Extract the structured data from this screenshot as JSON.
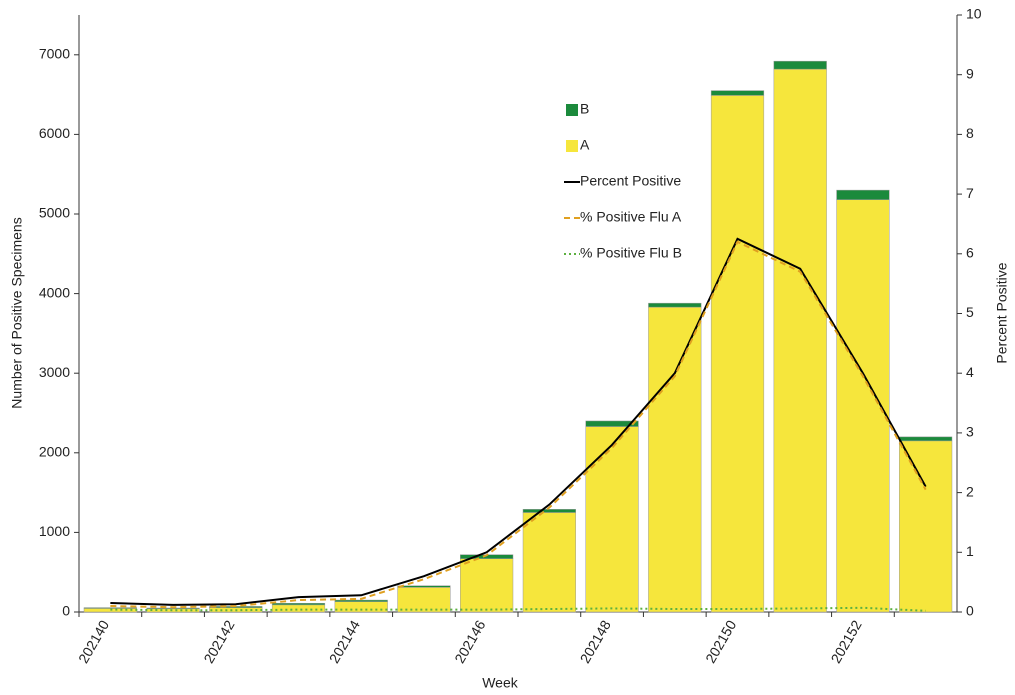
{
  "chart_data": {
    "type": "bar",
    "x_label": "Week",
    "y_label": "Number of Positive Specimens",
    "y2_label": "Percent Positive",
    "categories": [
      "202140",
      null,
      "202142",
      null,
      "202144",
      null,
      "202146",
      null,
      "202148",
      null,
      "202150",
      null,
      "202152",
      null
    ],
    "series": [
      {
        "name": "B",
        "kind": "bar",
        "color": "#1b8a3c",
        "values": [
          10,
          10,
          15,
          20,
          20,
          20,
          50,
          40,
          70,
          50,
          60,
          100,
          120,
          50
        ]
      },
      {
        "name": "A",
        "kind": "bar",
        "color": "#f6e63c",
        "values": [
          45,
          40,
          55,
          90,
          130,
          310,
          670,
          1250,
          2330,
          3830,
          6490,
          6820,
          5180,
          2150
        ]
      },
      {
        "name": "Percent Positive",
        "kind": "line",
        "axis": "y2",
        "color": "#000000",
        "dash": "none",
        "values": [
          0.15,
          0.12,
          0.13,
          0.25,
          0.28,
          0.6,
          1.0,
          1.8,
          2.8,
          4.0,
          6.25,
          5.75,
          4.0,
          2.1
        ]
      },
      {
        "name": "% Positive Flu A",
        "kind": "line",
        "axis": "y2",
        "color": "#e0a020",
        "dash": "6 4",
        "values": [
          0.1,
          0.08,
          0.1,
          0.2,
          0.22,
          0.55,
          0.95,
          1.75,
          2.75,
          3.95,
          6.2,
          5.7,
          3.95,
          2.05
        ]
      },
      {
        "name": "% Positive Flu B",
        "kind": "line",
        "axis": "y2",
        "color": "#5cb040",
        "dash": "2 3",
        "values": [
          0.04,
          0.03,
          0.03,
          0.04,
          0.04,
          0.04,
          0.04,
          0.05,
          0.06,
          0.05,
          0.05,
          0.06,
          0.07,
          0.02
        ]
      }
    ],
    "ylim": [
      0,
      7500
    ],
    "yticks": [
      0,
      1000,
      2000,
      3000,
      4000,
      5000,
      6000,
      7000
    ],
    "y2lim": [
      0,
      10
    ],
    "y2ticks": [
      0,
      1,
      2,
      3,
      4,
      5,
      6,
      7,
      8,
      9,
      10
    ],
    "grid": false
  }
}
